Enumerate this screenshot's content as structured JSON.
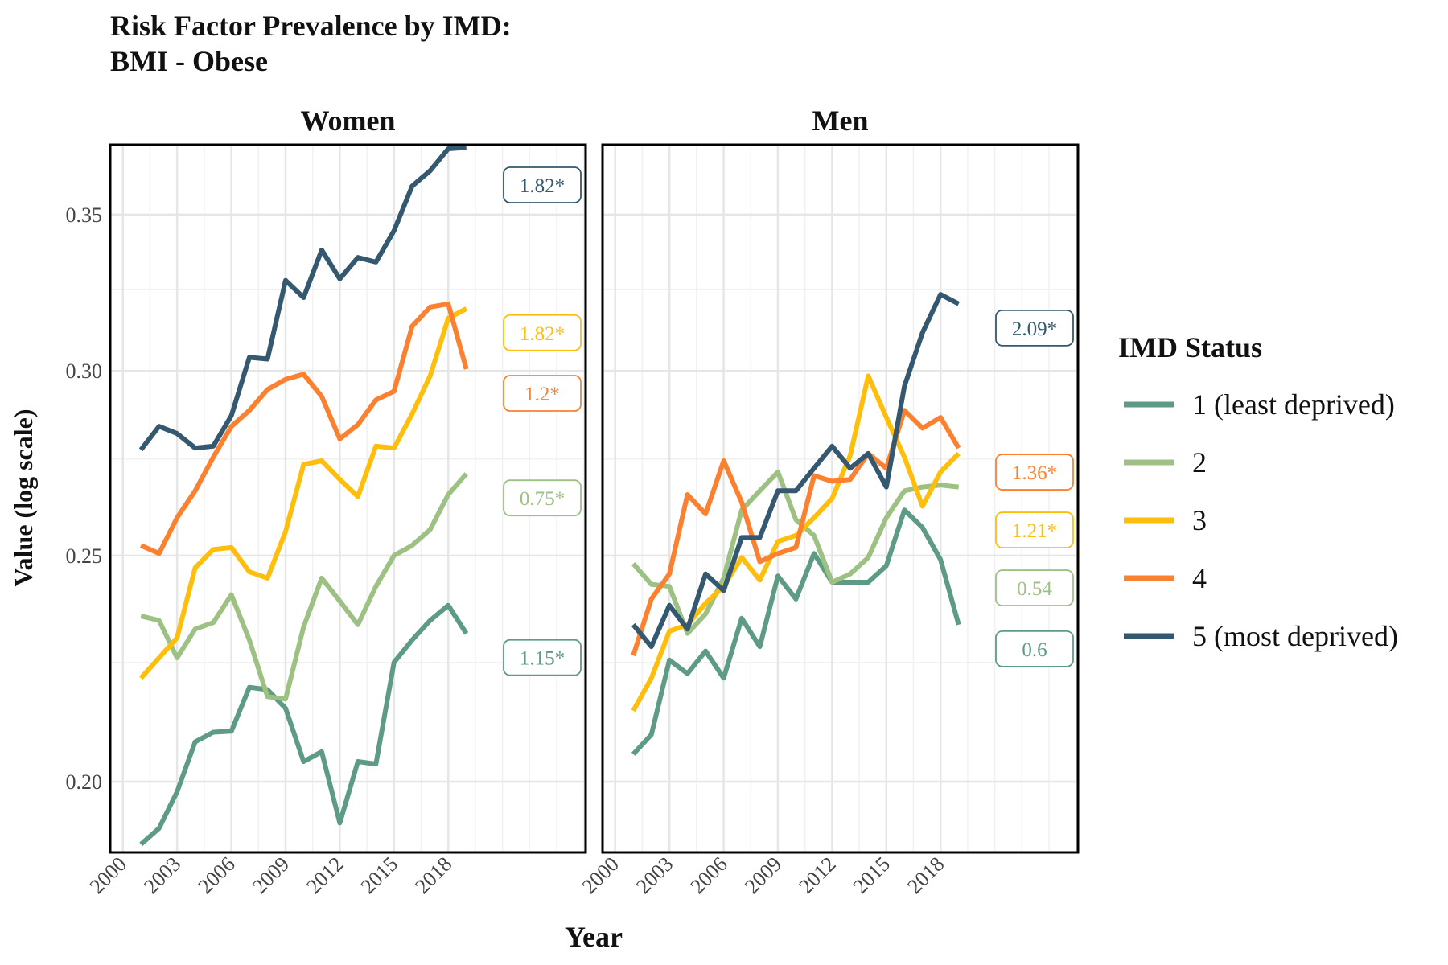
{
  "title_line1": "Risk Factor Prevalence by IMD:",
  "title_line2": "BMI - Obese",
  "xlabel": "Year",
  "ylabel": "Value (log scale)",
  "legend_title": "IMD Status",
  "legend": [
    {
      "label": "1 (least deprived)",
      "color": "#5E9B84"
    },
    {
      "label": "2",
      "color": "#9DC183"
    },
    {
      "label": "3",
      "color": "#FFBE0B"
    },
    {
      "label": "4",
      "color": "#FB8131"
    },
    {
      "label": "5 (most deprived)",
      "color": "#33586F"
    }
  ],
  "chart_data": {
    "type": "line",
    "y_scale": "log",
    "ylim": [
      0.1865,
      0.375
    ],
    "xlim": [
      1999.3,
      2025.6
    ],
    "x_ticks": [
      2000,
      2003,
      2006,
      2009,
      2012,
      2015,
      2018
    ],
    "y_ticks": [
      0.2,
      0.25,
      0.3,
      0.35
    ],
    "y_tick_labels": [
      "0.20",
      "0.25",
      "0.30",
      "0.35"
    ],
    "x": [
      2001,
      2002,
      2003,
      2004,
      2005,
      2006,
      2007,
      2008,
      2009,
      2010,
      2011,
      2012,
      2013,
      2014,
      2015,
      2016,
      2017,
      2018,
      2019
    ],
    "panels": [
      {
        "name": "Women",
        "series": [
          {
            "name": "1 (least deprived)",
            "color": "#5E9B84",
            "ratio": "1.15*",
            "values": [
              0.188,
              0.191,
              0.198,
              0.208,
              0.21,
              0.2102,
              0.2195,
              0.219,
              0.215,
              0.204,
              0.206,
              0.192,
              0.204,
              0.2035,
              0.225,
              0.23,
              0.2345,
              0.238,
              0.2315
            ]
          },
          {
            "name": "2",
            "color": "#9DC183",
            "ratio": "0.75*",
            "values": [
              0.2355,
              0.2345,
              0.226,
              0.2325,
              0.234,
              0.2405,
              0.23,
              0.2175,
              0.217,
              0.233,
              0.2445,
              0.239,
              0.2335,
              0.2425,
              0.25,
              0.2525,
              0.2565,
              0.2655,
              0.271
            ]
          },
          {
            "name": "3",
            "color": "#FFBE0B",
            "ratio": "1.82*",
            "values": [
              0.2215,
              0.226,
              0.2305,
              0.247,
              0.2515,
              0.252,
              0.246,
              0.2445,
              0.256,
              0.2735,
              0.2745,
              0.2695,
              0.265,
              0.2785,
              0.278,
              0.2875,
              0.2985,
              0.316,
              0.319
            ]
          },
          {
            "name": "4",
            "color": "#FB8131",
            "ratio": "1.2*",
            "values": [
              0.2525,
              0.2505,
              0.2595,
              0.2665,
              0.2755,
              0.284,
              0.2885,
              0.2945,
              0.2975,
              0.299,
              0.2925,
              0.2805,
              0.2845,
              0.2915,
              0.294,
              0.3135,
              0.3195,
              0.3205,
              0.3005
            ]
          },
          {
            "name": "5 (most deprived)",
            "color": "#33586F",
            "ratio": "1.82*",
            "values": [
              0.2775,
              0.284,
              0.282,
              0.278,
              0.2785,
              0.287,
              0.304,
              0.3035,
              0.328,
              0.3225,
              0.338,
              0.3285,
              0.3355,
              0.334,
              0.3445,
              0.36,
              0.3655,
              0.3735,
              0.374
            ]
          }
        ]
      },
      {
        "name": "Men",
        "series": [
          {
            "name": "1 (least deprived)",
            "color": "#5E9B84",
            "ratio": "0.6",
            "values": [
              0.2055,
              0.2095,
              0.2255,
              0.2225,
              0.2275,
              0.2215,
              0.235,
              0.2285,
              0.245,
              0.2395,
              0.2505,
              0.2435,
              0.2435,
              0.2435,
              0.2475,
              0.2615,
              0.257,
              0.249,
              0.2335
            ]
          },
          {
            "name": "2",
            "color": "#9DC183",
            "ratio": "0.54",
            "values": [
              0.248,
              0.243,
              0.2425,
              0.2315,
              0.236,
              0.2445,
              0.2615,
              0.2665,
              0.2715,
              0.259,
              0.255,
              0.2435,
              0.2455,
              0.2495,
              0.2595,
              0.2665,
              0.2675,
              0.268,
              0.2675
            ]
          },
          {
            "name": "3",
            "color": "#FFBE0B",
            "ratio": "1.21*",
            "values": [
              0.2145,
              0.2215,
              0.232,
              0.2335,
              0.2385,
              0.2425,
              0.2495,
              0.244,
              0.2535,
              0.255,
              0.2595,
              0.2645,
              0.276,
              0.2985,
              0.2865,
              0.2755,
              0.2625,
              0.2715,
              0.2765
            ]
          },
          {
            "name": "4",
            "color": "#FB8131",
            "ratio": "1.36*",
            "values": [
              0.2265,
              0.2395,
              0.2455,
              0.2655,
              0.2605,
              0.2745,
              0.2635,
              0.2485,
              0.2505,
              0.252,
              0.2705,
              0.269,
              0.2695,
              0.2765,
              0.2725,
              0.2885,
              0.2835,
              0.2865,
              0.278
            ]
          },
          {
            "name": "5 (most deprived)",
            "color": "#33586F",
            "ratio": "2.09*",
            "values": [
              0.2335,
              0.2285,
              0.238,
              0.2325,
              0.2455,
              0.2415,
              0.2545,
              0.2545,
              0.2665,
              0.2665,
              0.2725,
              0.2785,
              0.2725,
              0.2765,
              0.2675,
              0.2955,
              0.3115,
              0.3235,
              0.3205
            ]
          }
        ]
      }
    ]
  }
}
